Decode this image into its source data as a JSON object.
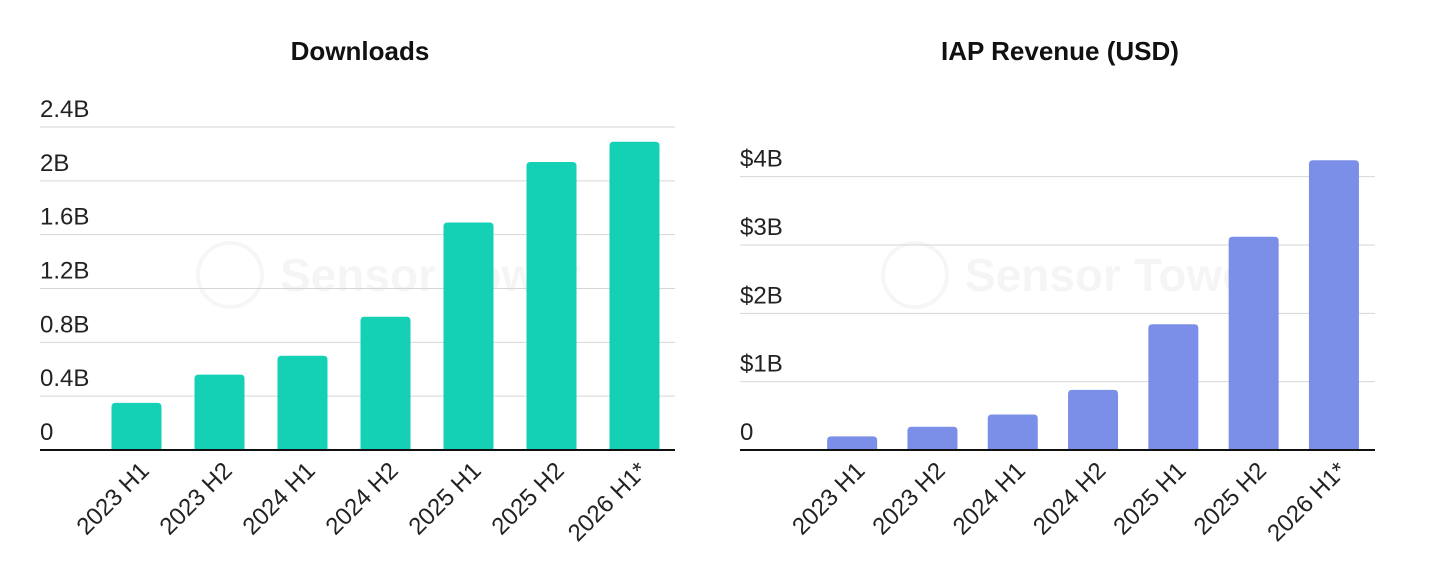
{
  "watermark": "Sensor Tower",
  "chart_data": [
    {
      "type": "bar",
      "title": "Downloads",
      "categories": [
        "2023 H1",
        "2023 H2",
        "2024 H1",
        "2024 H2",
        "2025 H1",
        "2025 H2",
        "2026 H1*"
      ],
      "values": [
        0.35,
        0.56,
        0.7,
        0.99,
        1.69,
        2.14,
        2.29
      ],
      "ylim": [
        0,
        2.4
      ],
      "yticks": [
        0,
        0.4,
        0.8,
        1.2,
        1.6,
        2,
        2.4
      ],
      "ytick_labels": [
        "0",
        "0.4B",
        "0.8B",
        "1.2B",
        "1.6B",
        "2B",
        "2.4B"
      ],
      "xlabel": "",
      "ylabel": "",
      "grid": true,
      "color": "#14d1b6"
    },
    {
      "type": "bar",
      "title": "IAP Revenue (USD)",
      "categories": [
        "2023 H1",
        "2023 H2",
        "2024 H1",
        "2024 H2",
        "2025 H1",
        "2025 H2",
        "2026 H1*"
      ],
      "values": [
        0.2,
        0.34,
        0.52,
        0.88,
        1.84,
        3.12,
        4.24
      ],
      "ylim": [
        0,
        4.2
      ],
      "yticks": [
        0,
        1,
        2,
        3,
        4
      ],
      "ytick_labels": [
        "0",
        "$1B",
        "$2B",
        "$3B",
        "$4B"
      ],
      "xlabel": "",
      "ylabel": "",
      "grid": true,
      "color": "#7b8fe8"
    }
  ]
}
